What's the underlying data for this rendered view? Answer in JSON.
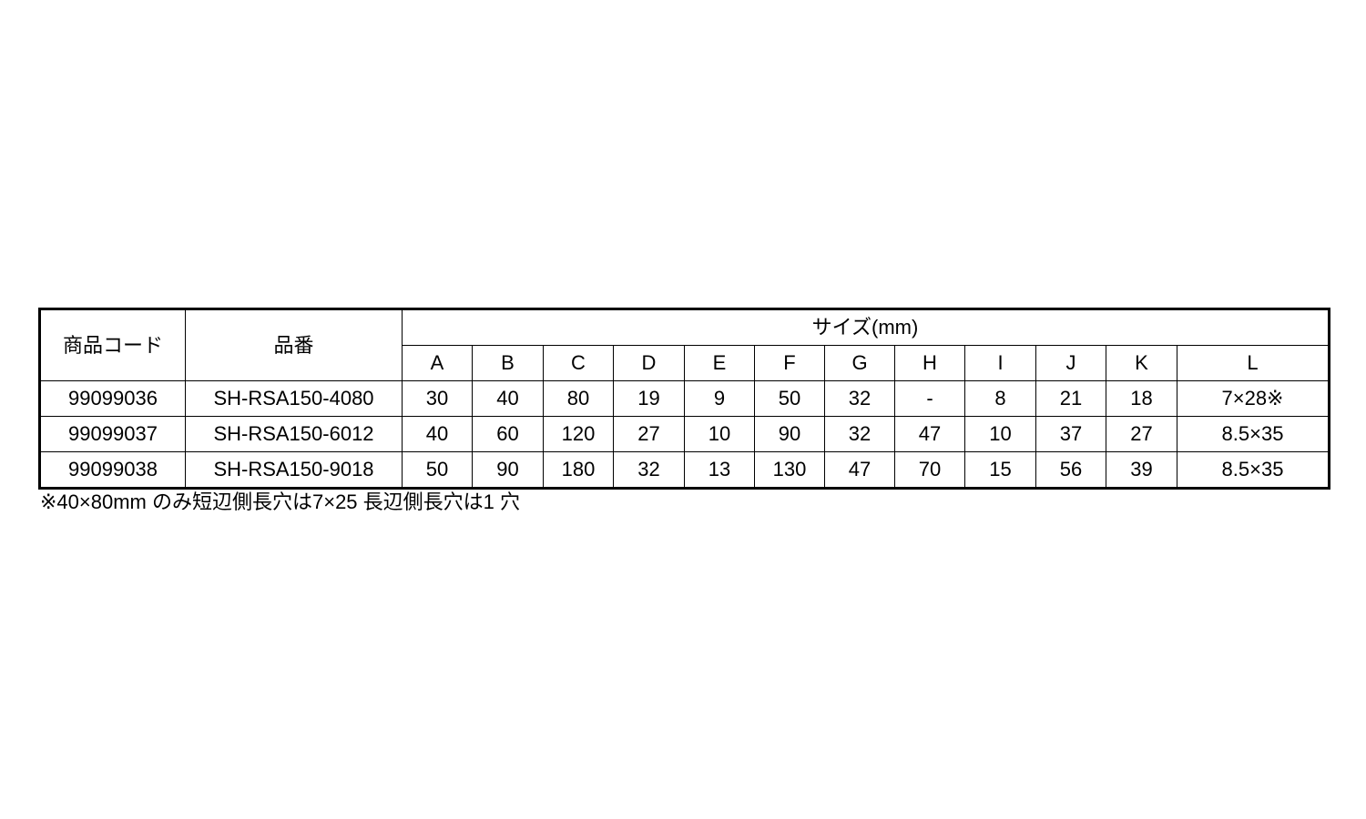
{
  "table": {
    "headers": {
      "code": "商品コード",
      "part_no": "品番",
      "size_group": "サイズ(mm)",
      "size_cols": [
        "A",
        "B",
        "C",
        "D",
        "E",
        "F",
        "G",
        "H",
        "I",
        "J",
        "K",
        "L"
      ]
    },
    "rows": [
      {
        "code": "99099036",
        "part_no": "SH-RSA150-4080",
        "values": [
          "30",
          "40",
          "80",
          "19",
          "9",
          "50",
          "32",
          "-",
          "8",
          "21",
          "18",
          "7×28※"
        ]
      },
      {
        "code": "99099037",
        "part_no": "SH-RSA150-6012",
        "values": [
          "40",
          "60",
          "120",
          "27",
          "10",
          "90",
          "32",
          "47",
          "10",
          "37",
          "27",
          "8.5×35"
        ]
      },
      {
        "code": "99099038",
        "part_no": "SH-RSA150-9018",
        "values": [
          "50",
          "90",
          "180",
          "32",
          "13",
          "130",
          "47",
          "70",
          "15",
          "56",
          "39",
          "8.5×35"
        ]
      }
    ]
  },
  "footnote": "※40×80mm のみ短辺側長穴は7×25 長辺側長穴は1 穴"
}
